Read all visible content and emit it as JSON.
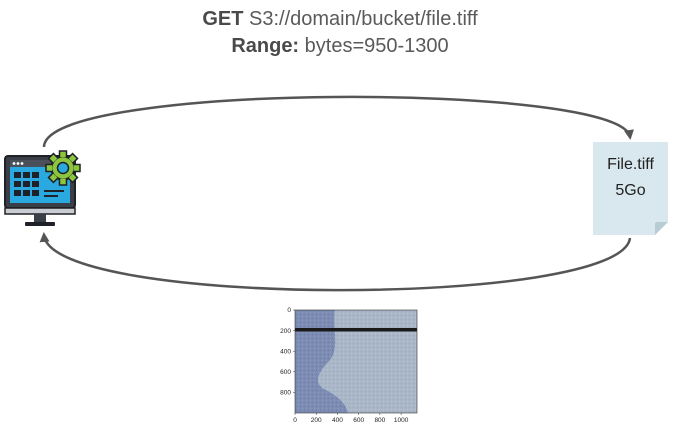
{
  "request": {
    "method": "GET",
    "url": "S3://domain/bucket/file.tiff",
    "range_label": "Range:",
    "range_value": "bytes=950-1300"
  },
  "file": {
    "name": "File.tiff",
    "size": "5Go"
  },
  "icons": {
    "client": "computer-settings-icon"
  },
  "colors": {
    "arrow": "#555555",
    "file_bg": "#d8e8ee",
    "monitor_screen": "#29a9df",
    "gear": "#8cc63f",
    "image_base": "#7d8cb3",
    "image_light": "#a9b7c8",
    "image_stripe": "#1a1a1a"
  },
  "chart_data": {
    "type": "heatmap",
    "x_ticks": [
      "0",
      "200",
      "400",
      "600",
      "800",
      "1000"
    ],
    "y_ticks": [
      "0",
      "200",
      "400",
      "600",
      "800"
    ],
    "xlim": [
      0,
      1150
    ],
    "ylim": [
      0,
      1000
    ]
  }
}
